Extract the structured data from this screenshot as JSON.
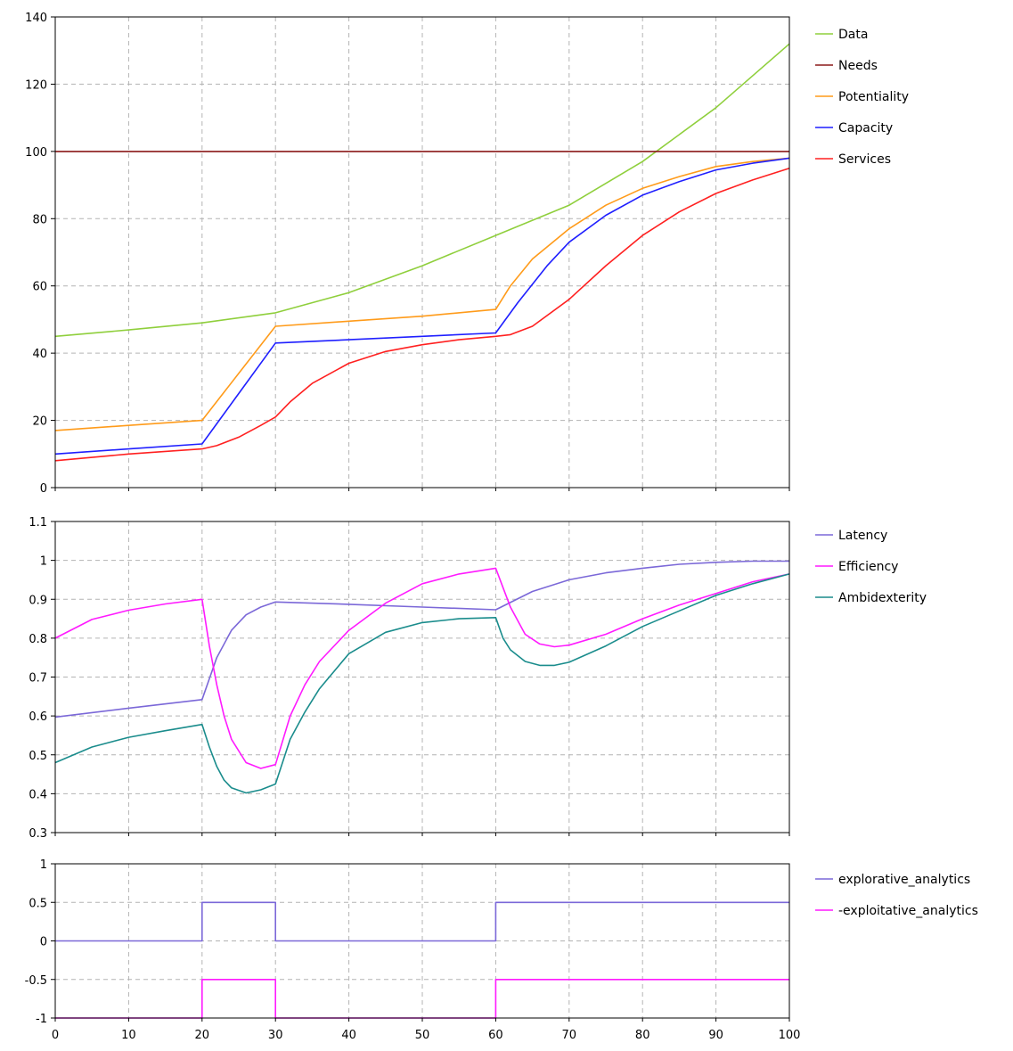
{
  "chart_data": [
    {
      "type": "line",
      "x_ticks": [
        "0",
        "10",
        "20",
        "30",
        "40",
        "50",
        "60",
        "70",
        "80",
        "90",
        "100"
      ],
      "y_ticks": [
        "0",
        "20",
        "40",
        "60",
        "80",
        "100",
        "120",
        "140"
      ],
      "xlim": [
        0,
        100
      ],
      "ylim": [
        0,
        140
      ],
      "grid": true,
      "legend_position": "right",
      "series": [
        {
          "name": "Data",
          "color": "#8fcf3c",
          "x": [
            0,
            10,
            20,
            30,
            40,
            50,
            60,
            70,
            80,
            90,
            100
          ],
          "y": [
            45,
            46.9,
            49,
            52,
            58,
            66,
            75,
            84,
            97,
            113,
            132
          ]
        },
        {
          "name": "Needs",
          "color": "#8b1a1a",
          "x": [
            0,
            100
          ],
          "y": [
            100,
            100
          ]
        },
        {
          "name": "Potentiality",
          "color": "#ff9b1a",
          "x": [
            0,
            10,
            20,
            25,
            30,
            40,
            50,
            60,
            62,
            65,
            70,
            75,
            80,
            85,
            90,
            95,
            100
          ],
          "y": [
            17,
            18.5,
            20,
            34,
            48,
            49.5,
            51,
            53,
            60,
            68,
            77,
            84,
            89,
            92.5,
            95.5,
            97,
            98
          ]
        },
        {
          "name": "Capacity",
          "color": "#1f1fff",
          "x": [
            0,
            10,
            20,
            25,
            30,
            40,
            50,
            60,
            63,
            67,
            70,
            75,
            80,
            85,
            90,
            95,
            100
          ],
          "y": [
            10,
            11.5,
            13,
            28,
            43,
            44,
            45,
            46,
            55,
            66,
            73,
            81,
            87,
            91,
            94.5,
            96.5,
            98
          ]
        },
        {
          "name": "Services",
          "color": "#ff2020",
          "x": [
            0,
            10,
            20,
            22,
            25,
            28,
            30,
            32,
            35,
            40,
            45,
            50,
            55,
            60,
            62,
            65,
            70,
            75,
            80,
            85,
            90,
            95,
            100
          ],
          "y": [
            8,
            10,
            11.5,
            12.5,
            15,
            18.5,
            21,
            25.5,
            31,
            37,
            40.5,
            42.5,
            44,
            45,
            45.5,
            48,
            56,
            66,
            75,
            82,
            87.5,
            91.5,
            95
          ]
        }
      ]
    },
    {
      "type": "line",
      "x_ticks": [
        "0",
        "10",
        "20",
        "30",
        "40",
        "50",
        "60",
        "70",
        "80",
        "90",
        "100"
      ],
      "y_ticks": [
        "0.3",
        "0.4",
        "0.5",
        "0.6",
        "0.7",
        "0.8",
        "0.9",
        "1",
        "1.1"
      ],
      "xlim": [
        0,
        100
      ],
      "ylim": [
        0.3,
        1.1
      ],
      "grid": true,
      "legend_position": "right",
      "series": [
        {
          "name": "Latency",
          "color": "#7b68d8",
          "x": [
            0,
            10,
            20,
            22,
            24,
            26,
            28,
            30,
            40,
            50,
            60,
            65,
            70,
            75,
            80,
            85,
            90,
            95,
            100
          ],
          "y": [
            0.597,
            0.62,
            0.642,
            0.75,
            0.82,
            0.86,
            0.88,
            0.893,
            0.887,
            0.88,
            0.873,
            0.92,
            0.95,
            0.968,
            0.98,
            0.99,
            0.995,
            0.998,
            0.998
          ]
        },
        {
          "name": "Efficiency",
          "color": "#ff1aff",
          "x": [
            0,
            5,
            10,
            15,
            20,
            21,
            22,
            23,
            24,
            26,
            28,
            30,
            32,
            34,
            36,
            40,
            45,
            50,
            55,
            60,
            61,
            62,
            64,
            66,
            68,
            70,
            75,
            80,
            85,
            90,
            95,
            100
          ],
          "y": [
            0.8,
            0.848,
            0.872,
            0.888,
            0.9,
            0.78,
            0.68,
            0.6,
            0.54,
            0.48,
            0.465,
            0.475,
            0.6,
            0.68,
            0.74,
            0.82,
            0.89,
            0.94,
            0.965,
            0.98,
            0.93,
            0.88,
            0.81,
            0.785,
            0.778,
            0.782,
            0.81,
            0.85,
            0.885,
            0.915,
            0.945,
            0.965
          ]
        },
        {
          "name": "Ambidexterity",
          "color": "#1a8c8c",
          "x": [
            0,
            5,
            10,
            15,
            20,
            21,
            22,
            23,
            24,
            26,
            28,
            30,
            32,
            34,
            36,
            40,
            45,
            50,
            55,
            60,
            61,
            62,
            64,
            66,
            68,
            70,
            75,
            80,
            85,
            90,
            95,
            100
          ],
          "y": [
            0.48,
            0.52,
            0.545,
            0.562,
            0.578,
            0.52,
            0.47,
            0.435,
            0.415,
            0.402,
            0.41,
            0.425,
            0.54,
            0.61,
            0.67,
            0.76,
            0.815,
            0.84,
            0.85,
            0.853,
            0.8,
            0.77,
            0.74,
            0.73,
            0.73,
            0.738,
            0.78,
            0.83,
            0.87,
            0.91,
            0.94,
            0.965
          ]
        }
      ]
    },
    {
      "type": "line",
      "x_ticks": [
        "0",
        "10",
        "20",
        "30",
        "40",
        "50",
        "60",
        "70",
        "80",
        "90",
        "100"
      ],
      "y_ticks": [
        "-1",
        "-0.5",
        "0",
        "0.5",
        "1"
      ],
      "xlim": [
        0,
        100
      ],
      "ylim": [
        -1,
        1
      ],
      "grid": true,
      "legend_position": "right",
      "series": [
        {
          "name": "explorative_analytics",
          "color": "#7b68d8",
          "x": [
            0,
            20,
            20,
            30,
            30,
            60,
            60,
            100
          ],
          "y": [
            0,
            0,
            0.5,
            0.5,
            0,
            0,
            0.5,
            0.5
          ]
        },
        {
          "name": "-exploitative_analytics",
          "color": "#ff1aff",
          "x": [
            0,
            20,
            20,
            30,
            30,
            60,
            60,
            100
          ],
          "y": [
            -1,
            -1,
            -0.5,
            -0.5,
            -1,
            -1,
            -0.5,
            -0.5
          ]
        }
      ]
    }
  ]
}
